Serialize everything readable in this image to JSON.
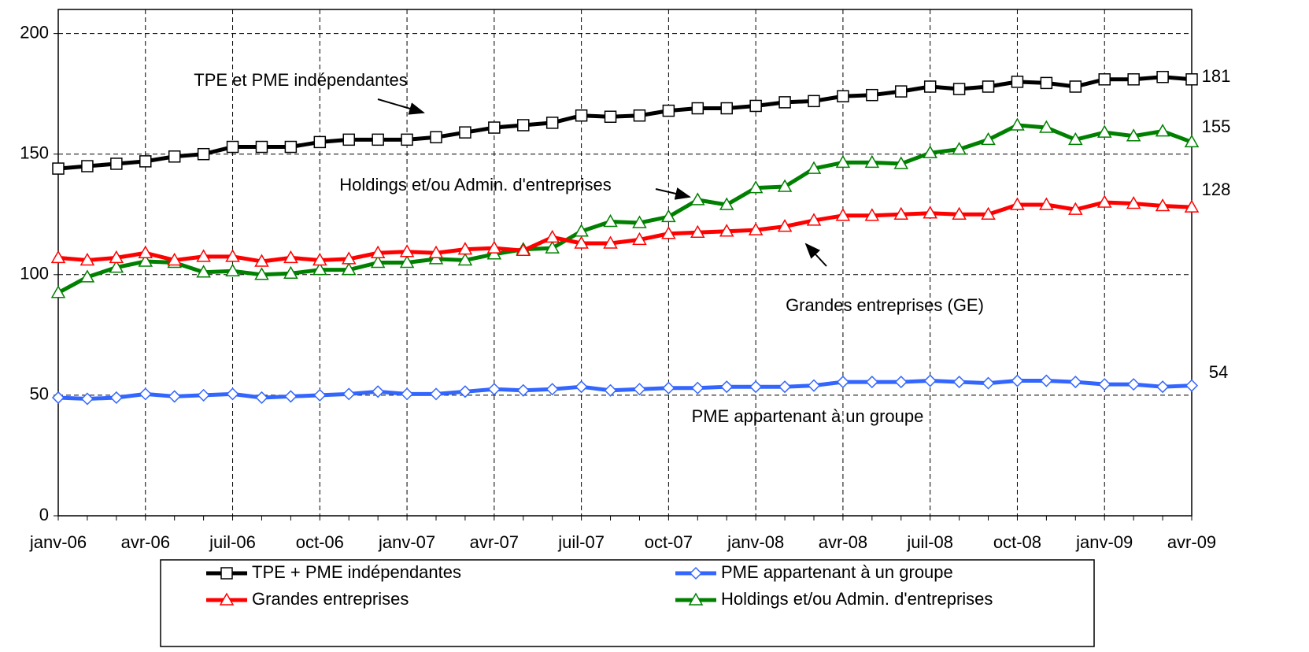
{
  "chart_data": {
    "type": "line",
    "categories": [
      "janv-06",
      null,
      null,
      "avr-06",
      null,
      null,
      "juil-06",
      null,
      null,
      "oct-06",
      null,
      null,
      "janv-07",
      null,
      null,
      "avr-07",
      null,
      null,
      "juil-07",
      null,
      null,
      "oct-07",
      null,
      null,
      "janv-08",
      null,
      null,
      "avr-08",
      null,
      null,
      "juil-08",
      null,
      null,
      "oct-08",
      null,
      null,
      "janv-09",
      null,
      null,
      "avr-09"
    ],
    "series": [
      {
        "name": "TPE + PME indépendantes",
        "color": "#000000",
        "marker": "square",
        "values": [
          144,
          145,
          146,
          147,
          149,
          150,
          153,
          153,
          153,
          155,
          156,
          156,
          156,
          157,
          159,
          161,
          162,
          163,
          166,
          165.5,
          166,
          168,
          169,
          169,
          170,
          171.5,
          172,
          174,
          174.5,
          176,
          178,
          177,
          178,
          180,
          179.5,
          178,
          181,
          181,
          182,
          181
        ]
      },
      {
        "name": "PME appartenant à un groupe",
        "color": "#3366ff",
        "marker": "diamond",
        "values": [
          49,
          48.5,
          49,
          50.5,
          49.5,
          50,
          50.5,
          49,
          49.5,
          50,
          50.5,
          51.5,
          50.5,
          50.5,
          51.5,
          52.5,
          52,
          52.5,
          53.5,
          52,
          52.5,
          53,
          53,
          53.5,
          53.5,
          53.5,
          54,
          55.5,
          55.5,
          55.5,
          56,
          55.5,
          55,
          56,
          56,
          55.5,
          54.5,
          54.5,
          53.5,
          54
        ]
      },
      {
        "name": "Grandes entreprises",
        "color": "#ff0000",
        "marker": "triangle",
        "values": [
          107,
          106,
          107,
          109,
          106,
          107.5,
          107.5,
          105.5,
          107,
          106,
          106.5,
          109,
          109.5,
          109,
          110.5,
          111,
          110,
          115.5,
          113,
          113,
          114.5,
          117,
          117.5,
          118,
          118.5,
          120,
          122.5,
          124.5,
          124.5,
          125,
          125.5,
          125,
          125,
          129,
          129,
          127,
          130,
          129.5,
          128.5,
          128
        ]
      },
      {
        "name": "Holdings et/ou Admin. d'entreprises",
        "color": "#008000",
        "marker": "triangle",
        "values": [
          92.5,
          99,
          103,
          105.5,
          105,
          101,
          101.5,
          100,
          100.5,
          102,
          102,
          105,
          105,
          106.5,
          106,
          108.5,
          110.5,
          111,
          118,
          122,
          121.5,
          124,
          131,
          129,
          136,
          136.5,
          144,
          146.5,
          146.5,
          146,
          150.5,
          152,
          156,
          162,
          161,
          156,
          159,
          157.5,
          159.5,
          155
        ]
      }
    ],
    "ylim": [
      0,
      210
    ],
    "yticks": [
      0,
      50,
      100,
      150,
      200
    ],
    "grid": true,
    "annotations": [
      "TPE et PME indépendantes",
      "Holdings et/ou Admin. d'entreprises",
      "Grandes entreprises (GE)",
      "PME appartenant à un groupe"
    ]
  }
}
